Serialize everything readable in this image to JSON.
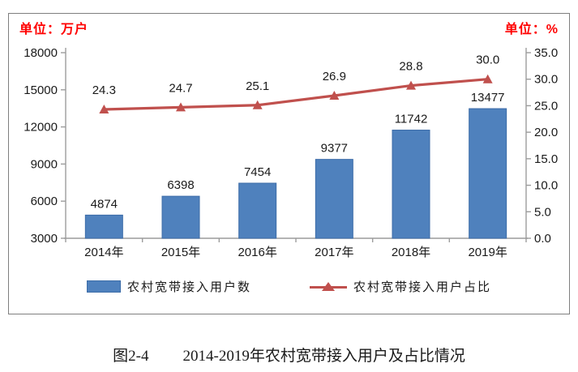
{
  "figure": {
    "unit_left": "单位：万户",
    "unit_right": "单位：%",
    "caption_number": "图2-4",
    "caption_title": "2014-2019年农村宽带接入用户及占比情况"
  },
  "chart_data": {
    "type": "bar+line",
    "title": "2014-2019年农村宽带接入用户及占比情况",
    "categories": [
      "2014年",
      "2015年",
      "2016年",
      "2017年",
      "2018年",
      "2019年"
    ],
    "series": [
      {
        "name": "农村宽带接入用户数",
        "type": "bar",
        "axis": "left",
        "values": [
          4874,
          6398,
          7454,
          9377,
          11742,
          13477
        ],
        "color": "#4f81bd",
        "border_color": "#3c6ca8"
      },
      {
        "name": "农村宽带接入用户占比",
        "type": "line",
        "axis": "right",
        "values": [
          24.3,
          24.7,
          25.1,
          26.9,
          28.8,
          30.0
        ],
        "color": "#c0504d",
        "marker": "triangle"
      }
    ],
    "left_axis": {
      "label": "单位：万户",
      "min": 3000,
      "max": 18000,
      "step": 3000
    },
    "right_axis": {
      "label": "单位：%",
      "min": 0,
      "max": 35,
      "step": 5,
      "decimals": 1
    },
    "grid": false,
    "legend_position": "bottom",
    "colors": {
      "axis_line": "#9c9c9c",
      "tick_text": "#1a1a1a",
      "data_label": "#1a1a1a",
      "unit_label": "#ff0000",
      "frame_border": "#7f7f7f"
    }
  }
}
